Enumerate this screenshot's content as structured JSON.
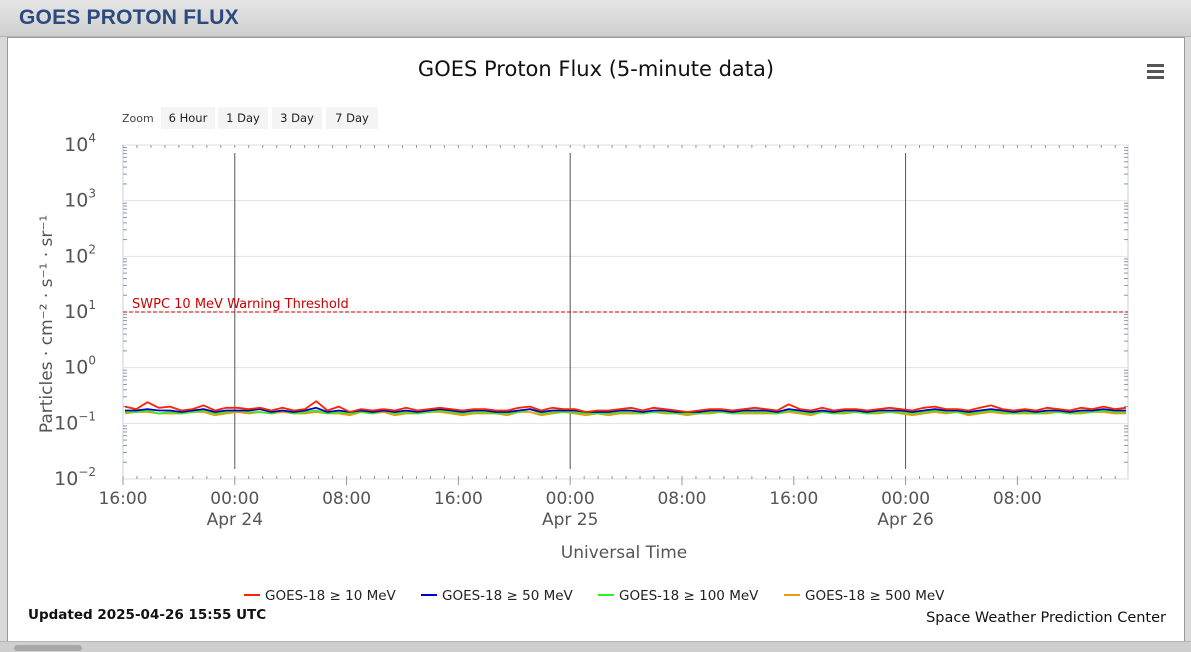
{
  "page": {
    "header_title": "GOES PROTON FLUX",
    "updated": "Updated 2025-04-26 15:55 UTC",
    "credit": "Space Weather Prediction Center",
    "menu_icon": "hamburger-menu-icon"
  },
  "zoom": {
    "label": "Zoom",
    "buttons": [
      "6 Hour",
      "1 Day",
      "3 Day",
      "7 Day"
    ]
  },
  "chart_data": {
    "type": "line",
    "title": "GOES Proton Flux (5-minute data)",
    "xlabel": "Universal Time",
    "ylabel": "Particles · cm⁻² · s⁻¹ · sr⁻¹",
    "y_scale": "log",
    "ylim": [
      0.01,
      10000
    ],
    "y_ticks": [
      {
        "value": 0.01,
        "base": "10",
        "exp": "−2"
      },
      {
        "value": 0.1,
        "base": "10",
        "exp": "−1"
      },
      {
        "value": 1,
        "base": "10",
        "exp": "0"
      },
      {
        "value": 10,
        "base": "10",
        "exp": "1"
      },
      {
        "value": 100,
        "base": "10",
        "exp": "2"
      },
      {
        "value": 1000,
        "base": "10",
        "exp": "3"
      },
      {
        "value": 10000,
        "base": "10",
        "exp": "4"
      }
    ],
    "xlim": [
      "2025-04-23 16:00",
      "2025-04-26 15:55"
    ],
    "x_ticks": [
      {
        "t": "2025-04-23 16:00",
        "label": "16:00",
        "date": ""
      },
      {
        "t": "2025-04-24 00:00",
        "label": "00:00",
        "date": "Apr 24"
      },
      {
        "t": "2025-04-24 08:00",
        "label": "08:00",
        "date": ""
      },
      {
        "t": "2025-04-24 16:00",
        "label": "16:00",
        "date": ""
      },
      {
        "t": "2025-04-25 00:00",
        "label": "00:00",
        "date": "Apr 25"
      },
      {
        "t": "2025-04-25 08:00",
        "label": "08:00",
        "date": ""
      },
      {
        "t": "2025-04-25 16:00",
        "label": "16:00",
        "date": ""
      },
      {
        "t": "2025-04-26 00:00",
        "label": "00:00",
        "date": "Apr 26"
      },
      {
        "t": "2025-04-26 08:00",
        "label": "08:00",
        "date": ""
      }
    ],
    "day_lines": [
      "2025-04-24 00:00",
      "2025-04-25 00:00",
      "2025-04-26 00:00"
    ],
    "threshold": {
      "value": 10,
      "label": "SWPC 10 MeV Warning Threshold",
      "color": "#cc0000"
    },
    "series": [
      {
        "name": "GOES-18 ≥ 10 MeV",
        "color": "#ff2200",
        "base": 0.18,
        "values": [
          0.2,
          0.18,
          0.24,
          0.19,
          0.2,
          0.17,
          0.18,
          0.21,
          0.17,
          0.19,
          0.19,
          0.18,
          0.19,
          0.17,
          0.19,
          0.17,
          0.18,
          0.25,
          0.17,
          0.2,
          0.16,
          0.18,
          0.17,
          0.18,
          0.17,
          0.19,
          0.17,
          0.18,
          0.19,
          0.18,
          0.17,
          0.18,
          0.18,
          0.17,
          0.17,
          0.19,
          0.2,
          0.17,
          0.19,
          0.18,
          0.18,
          0.16,
          0.17,
          0.17,
          0.18,
          0.19,
          0.17,
          0.19,
          0.18,
          0.17,
          0.16,
          0.17,
          0.18,
          0.18,
          0.17,
          0.18,
          0.19,
          0.18,
          0.17,
          0.22,
          0.18,
          0.17,
          0.19,
          0.17,
          0.18,
          0.18,
          0.17,
          0.18,
          0.19,
          0.18,
          0.17,
          0.19,
          0.2,
          0.18,
          0.18,
          0.17,
          0.19,
          0.21,
          0.18,
          0.17,
          0.18,
          0.17,
          0.19,
          0.18,
          0.17,
          0.19,
          0.18,
          0.2,
          0.18,
          0.19
        ]
      },
      {
        "name": "GOES-18 ≥ 50 MeV",
        "color": "#0000cc",
        "base": 0.17,
        "values": [
          0.17,
          0.17,
          0.18,
          0.17,
          0.17,
          0.16,
          0.17,
          0.18,
          0.16,
          0.17,
          0.17,
          0.17,
          0.18,
          0.16,
          0.17,
          0.16,
          0.17,
          0.19,
          0.16,
          0.17,
          0.16,
          0.17,
          0.16,
          0.17,
          0.16,
          0.17,
          0.16,
          0.17,
          0.18,
          0.17,
          0.16,
          0.17,
          0.17,
          0.16,
          0.16,
          0.17,
          0.18,
          0.16,
          0.17,
          0.17,
          0.17,
          0.16,
          0.16,
          0.16,
          0.17,
          0.17,
          0.16,
          0.17,
          0.17,
          0.16,
          0.16,
          0.16,
          0.17,
          0.17,
          0.16,
          0.17,
          0.17,
          0.17,
          0.16,
          0.18,
          0.17,
          0.16,
          0.17,
          0.16,
          0.17,
          0.17,
          0.16,
          0.17,
          0.17,
          0.17,
          0.16,
          0.17,
          0.18,
          0.17,
          0.17,
          0.16,
          0.17,
          0.18,
          0.17,
          0.16,
          0.17,
          0.16,
          0.17,
          0.17,
          0.16,
          0.17,
          0.17,
          0.18,
          0.17,
          0.17
        ]
      },
      {
        "name": "GOES-18 ≥ 100 MeV",
        "color": "#33ee22",
        "base": 0.16,
        "values": [
          0.16,
          0.16,
          0.17,
          0.15,
          0.16,
          0.15,
          0.16,
          0.17,
          0.15,
          0.16,
          0.17,
          0.16,
          0.16,
          0.15,
          0.17,
          0.15,
          0.16,
          0.17,
          0.15,
          0.16,
          0.15,
          0.16,
          0.15,
          0.17,
          0.15,
          0.16,
          0.15,
          0.16,
          0.17,
          0.16,
          0.15,
          0.16,
          0.16,
          0.15,
          0.15,
          0.16,
          0.18,
          0.15,
          0.16,
          0.16,
          0.16,
          0.15,
          0.15,
          0.15,
          0.16,
          0.16,
          0.15,
          0.16,
          0.16,
          0.15,
          0.15,
          0.15,
          0.16,
          0.16,
          0.15,
          0.16,
          0.16,
          0.16,
          0.15,
          0.17,
          0.16,
          0.15,
          0.16,
          0.15,
          0.16,
          0.16,
          0.15,
          0.16,
          0.16,
          0.16,
          0.15,
          0.16,
          0.17,
          0.16,
          0.16,
          0.15,
          0.16,
          0.17,
          0.16,
          0.15,
          0.16,
          0.15,
          0.16,
          0.16,
          0.15,
          0.16,
          0.16,
          0.17,
          0.16,
          0.16
        ]
      },
      {
        "name": "GOES-18 ≥ 500 MeV",
        "color": "#e89a10",
        "base": 0.155,
        "values": [
          0.15,
          0.16,
          0.16,
          0.15,
          0.15,
          0.15,
          0.16,
          0.16,
          0.14,
          0.15,
          0.16,
          0.15,
          0.16,
          0.15,
          0.16,
          0.15,
          0.15,
          0.16,
          0.15,
          0.15,
          0.14,
          0.16,
          0.15,
          0.16,
          0.14,
          0.15,
          0.15,
          0.16,
          0.16,
          0.15,
          0.14,
          0.15,
          0.15,
          0.15,
          0.14,
          0.16,
          0.16,
          0.14,
          0.15,
          0.16,
          0.15,
          0.14,
          0.15,
          0.14,
          0.15,
          0.15,
          0.15,
          0.16,
          0.15,
          0.15,
          0.14,
          0.15,
          0.15,
          0.16,
          0.15,
          0.15,
          0.15,
          0.15,
          0.15,
          0.16,
          0.15,
          0.14,
          0.16,
          0.15,
          0.15,
          0.16,
          0.15,
          0.15,
          0.16,
          0.15,
          0.14,
          0.15,
          0.16,
          0.15,
          0.16,
          0.14,
          0.15,
          0.16,
          0.15,
          0.15,
          0.15,
          0.15,
          0.15,
          0.16,
          0.15,
          0.15,
          0.16,
          0.16,
          0.15,
          0.15
        ]
      }
    ],
    "legend_placement": "bottom-center",
    "grid": true
  }
}
